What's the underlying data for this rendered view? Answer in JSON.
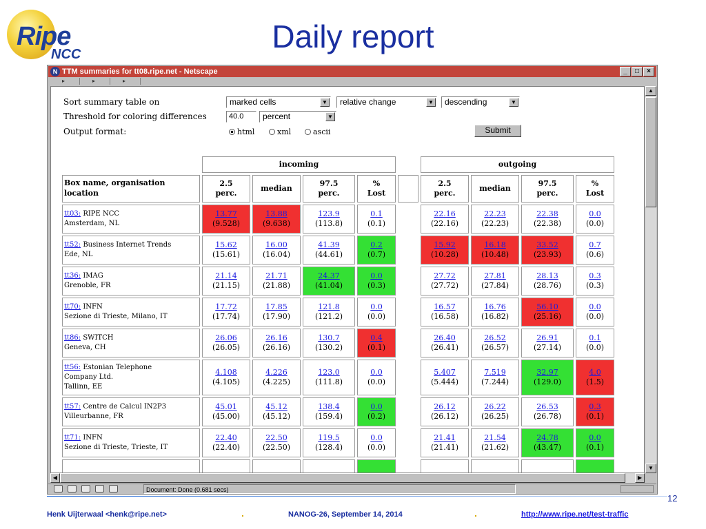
{
  "slide": {
    "logo_main": "Ripe",
    "logo_sub": "NCC",
    "title": "Daily report",
    "page_number": "12"
  },
  "window": {
    "title": "TTM summaries for tt08.ripe.net - Netscape",
    "controls": [
      "_",
      "□",
      "×"
    ],
    "status_text": "Document: Done (0.681 secs)"
  },
  "form": {
    "sort_label": "Sort summary table on",
    "sort_by": "marked cells",
    "sort_mode": "relative change",
    "sort_order": "descending",
    "threshold_label": "Threshold for coloring differences",
    "threshold_value": "40.0",
    "threshold_unit": "percent",
    "output_label": "Output format:",
    "formats": [
      {
        "label": "html",
        "selected": true
      },
      {
        "label": "xml",
        "selected": false
      },
      {
        "label": "ascii",
        "selected": false
      }
    ],
    "submit_label": "Submit"
  },
  "table": {
    "group_incoming": "incoming",
    "group_outgoing": "outgoing",
    "col_box_line1": "Box name, organisation",
    "col_box_line2": "location",
    "cols": [
      {
        "l1": "2.5",
        "l2": "perc."
      },
      {
        "l1": "median",
        "l2": ""
      },
      {
        "l1": "97.5",
        "l2": "perc."
      },
      {
        "l1": "%",
        "l2": "Lost"
      }
    ],
    "rows": [
      {
        "box": "tt03:",
        "org": "RIPE NCC",
        "org2": "",
        "loc": "Amsterdam, NL",
        "cells": [
          {
            "v": "13.77",
            "p": "(9.528)",
            "c": "red"
          },
          {
            "v": "13.88",
            "p": "(9.638)",
            "c": "red"
          },
          {
            "v": "123.9",
            "p": "(113.8)",
            "c": ""
          },
          {
            "v": "0.1",
            "p": "(0.1)",
            "c": ""
          },
          {
            "v": "22.16",
            "p": "(22.16)",
            "c": ""
          },
          {
            "v": "22.23",
            "p": "(22.23)",
            "c": ""
          },
          {
            "v": "22.38",
            "p": "(22.38)",
            "c": ""
          },
          {
            "v": "0.0",
            "p": "(0.0)",
            "c": ""
          }
        ]
      },
      {
        "box": "tt52:",
        "org": "Business Internet Trends",
        "org2": "",
        "loc": "Ede, NL",
        "cells": [
          {
            "v": "15.62",
            "p": "(15.61)",
            "c": ""
          },
          {
            "v": "16.00",
            "p": "(16.04)",
            "c": ""
          },
          {
            "v": "41.39",
            "p": "(44.61)",
            "c": ""
          },
          {
            "v": "0.2",
            "p": "(0.7)",
            "c": "green"
          },
          {
            "v": "15.92",
            "p": "(10.28)",
            "c": "red"
          },
          {
            "v": "16.18",
            "p": "(10.48)",
            "c": "red"
          },
          {
            "v": "33.52",
            "p": "(23.93)",
            "c": "red"
          },
          {
            "v": "0.7",
            "p": "(0.6)",
            "c": ""
          }
        ]
      },
      {
        "box": "tt36:",
        "org": "IMAG",
        "org2": "",
        "loc": "Grenoble, FR",
        "cells": [
          {
            "v": "21.14",
            "p": "(21.15)",
            "c": ""
          },
          {
            "v": "21.71",
            "p": "(21.88)",
            "c": ""
          },
          {
            "v": "24.37",
            "p": "(41.04)",
            "c": "green"
          },
          {
            "v": "0.0",
            "p": "(0.3)",
            "c": "green"
          },
          {
            "v": "27.72",
            "p": "(27.72)",
            "c": ""
          },
          {
            "v": "27.81",
            "p": "(27.84)",
            "c": ""
          },
          {
            "v": "28.13",
            "p": "(28.76)",
            "c": ""
          },
          {
            "v": "0.3",
            "p": "(0.3)",
            "c": ""
          }
        ]
      },
      {
        "box": "tt70:",
        "org": "INFN",
        "org2": "",
        "loc": "Sezione di Trieste, Milano, IT",
        "cells": [
          {
            "v": "17.72",
            "p": "(17.74)",
            "c": ""
          },
          {
            "v": "17.85",
            "p": "(17.90)",
            "c": ""
          },
          {
            "v": "121.8",
            "p": "(121.2)",
            "c": ""
          },
          {
            "v": "0.0",
            "p": "(0.0)",
            "c": ""
          },
          {
            "v": "16.57",
            "p": "(16.58)",
            "c": ""
          },
          {
            "v": "16.76",
            "p": "(16.82)",
            "c": ""
          },
          {
            "v": "56.10",
            "p": "(25.16)",
            "c": "red"
          },
          {
            "v": "0.0",
            "p": "(0.0)",
            "c": ""
          }
        ]
      },
      {
        "box": "tt86:",
        "org": "SWITCH",
        "org2": "",
        "loc": "Geneva, CH",
        "cells": [
          {
            "v": "26.06",
            "p": "(26.05)",
            "c": ""
          },
          {
            "v": "26.16",
            "p": "(26.16)",
            "c": ""
          },
          {
            "v": "130.7",
            "p": "(130.2)",
            "c": ""
          },
          {
            "v": "0.4",
            "p": "(0.1)",
            "c": "red"
          },
          {
            "v": "26.40",
            "p": "(26.41)",
            "c": ""
          },
          {
            "v": "26.52",
            "p": "(26.57)",
            "c": ""
          },
          {
            "v": "26.91",
            "p": "(27.14)",
            "c": ""
          },
          {
            "v": "0.1",
            "p": "(0.0)",
            "c": ""
          }
        ]
      },
      {
        "box": "tt56:",
        "org": "Estonian Telephone",
        "org2": "Company Ltd.",
        "loc": "Tallinn, EE",
        "cells": [
          {
            "v": "4.108",
            "p": "(4.105)",
            "c": ""
          },
          {
            "v": "4.226",
            "p": "(4.225)",
            "c": ""
          },
          {
            "v": "123.0",
            "p": "(111.8)",
            "c": ""
          },
          {
            "v": "0.0",
            "p": "(0.0)",
            "c": ""
          },
          {
            "v": "5.407",
            "p": "(5.444)",
            "c": ""
          },
          {
            "v": "7.519",
            "p": "(7.244)",
            "c": ""
          },
          {
            "v": "32.97",
            "p": "(129.0)",
            "c": "green"
          },
          {
            "v": "4.0",
            "p": "(1.5)",
            "c": "red"
          }
        ]
      },
      {
        "box": "tt57:",
        "org": "Centre de Calcul IN2P3",
        "org2": "",
        "loc": "Villeurbanne, FR",
        "cells": [
          {
            "v": "45.01",
            "p": "(45.00)",
            "c": ""
          },
          {
            "v": "45.12",
            "p": "(45.12)",
            "c": ""
          },
          {
            "v": "138.4",
            "p": "(159.4)",
            "c": ""
          },
          {
            "v": "0.0",
            "p": "(0.2)",
            "c": "green"
          },
          {
            "v": "26.12",
            "p": "(26.12)",
            "c": ""
          },
          {
            "v": "26.22",
            "p": "(26.25)",
            "c": ""
          },
          {
            "v": "26.53",
            "p": "(26.78)",
            "c": ""
          },
          {
            "v": "0.3",
            "p": "(0.1)",
            "c": "red"
          }
        ]
      },
      {
        "box": "tt71:",
        "org": "INFN",
        "org2": "",
        "loc": "Sezione di Trieste, Trieste, IT",
        "cells": [
          {
            "v": "22.40",
            "p": "(22.40)",
            "c": ""
          },
          {
            "v": "22.50",
            "p": "(22.50)",
            "c": ""
          },
          {
            "v": "119.5",
            "p": "(128.4)",
            "c": ""
          },
          {
            "v": "0.0",
            "p": "(0.0)",
            "c": ""
          },
          {
            "v": "21.41",
            "p": "(21.41)",
            "c": ""
          },
          {
            "v": "21.54",
            "p": "(21.62)",
            "c": ""
          },
          {
            "v": "24.78",
            "p": "(43.47)",
            "c": "green"
          },
          {
            "v": "0.0",
            "p": "(0.1)",
            "c": "green"
          }
        ]
      },
      {
        "box": "",
        "org": "",
        "org2": "",
        "loc": "",
        "cells": [
          {
            "v": "",
            "p": "",
            "c": ""
          },
          {
            "v": "",
            "p": "",
            "c": ""
          },
          {
            "v": "",
            "p": "",
            "c": ""
          },
          {
            "v": "",
            "p": "",
            "c": "green"
          },
          {
            "v": "",
            "p": "",
            "c": ""
          },
          {
            "v": "",
            "p": "",
            "c": ""
          },
          {
            "v": "",
            "p": "",
            "c": ""
          },
          {
            "v": "",
            "p": "",
            "c": "green"
          }
        ]
      }
    ]
  },
  "footer": {
    "author": "Henk Uijterwaal <henk@ripe.net>",
    "event": "NANOG-26, September 14, 2014",
    "url": "http://www.ripe.net/test-traffic",
    "separator": "."
  },
  "colors": {
    "red": "#f03030",
    "green": "#34e034",
    "title_blue": "#1a2fa0",
    "link_blue": "#1a1ae0"
  }
}
